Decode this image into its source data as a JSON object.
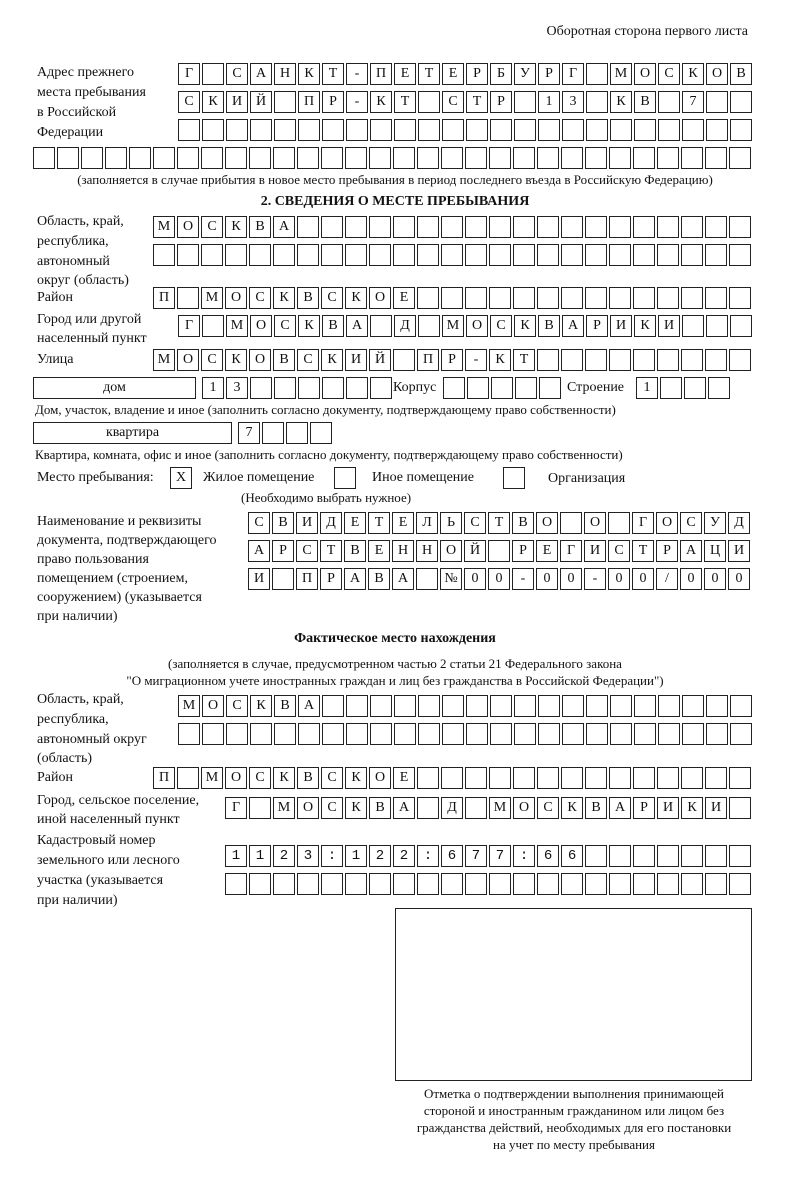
{
  "header": {
    "side_label": "Оборотная сторона первого листа"
  },
  "prev_address": {
    "label": [
      "Адрес прежнего",
      "места пребывания",
      "в Российской",
      "Федерации"
    ],
    "rows": [
      "Г САНКТ-ПЕТЕРБУРГ МОСКОВ",
      "СКИЙ ПР-КТ СТР 13 КВ 7",
      "",
      ""
    ],
    "note": "(заполняется в случае прибытия в новое место пребывания в период последнего въезда в Российскую Федерацию)"
  },
  "section2": {
    "title": "2. СВЕДЕНИЯ О МЕСТЕ ПРЕБЫВАНИЯ",
    "region_label": [
      "Область, край,",
      "республика,",
      "автономный",
      "округ (область)"
    ],
    "region_rows": [
      "МОСКВА",
      ""
    ],
    "district_label": "Район",
    "district": "П МОСКВСКОЕ",
    "city_label": [
      "Город или другой",
      "населенный пункт"
    ],
    "city": "Г МОСКВА Д МОСКВАРИКИ",
    "street_label": "Улица",
    "street": "МОСКОВСКИЙ ПР-КТ",
    "house_type": "дом",
    "house": "13",
    "korpus_label": "Корпус",
    "korpus": "",
    "building_label": "Строение",
    "building": "1",
    "house_note": "Дом, участок, владение и иное (заполнить согласно документу, подтверждающему право собственности)",
    "flat_type": "квартира",
    "flat": "7",
    "flat_note": "Квартира, комната, офис и иное (заполнить согласно документу, подтверждающему право собственности)",
    "stay_label": "Место пребывания:",
    "stay_options": [
      {
        "label": "Жилое помещение",
        "mark": "Х"
      },
      {
        "label": "Иное помещение",
        "mark": ""
      },
      {
        "label": "Организация",
        "mark": ""
      }
    ],
    "stay_hint": "(Необходимо выбрать нужное)",
    "doc_label": [
      "Наименование и реквизиты",
      "документа, подтверждающего",
      "право пользования",
      "помещением (строением,",
      "сооружением) (указывается",
      "при наличии)"
    ],
    "doc_rows": [
      "СВИДЕТЕЛЬСТВО О ГОСУД",
      "АРСТВЕННОЙ РЕГИСТРАЦИ",
      "И ПРАВА №00-00-00/000"
    ]
  },
  "actual": {
    "title": "Фактическое место нахождения",
    "subtitle": [
      "(заполняется в случае, предусмотренном частью 2 статьи 21 Федерального закона",
      "\"О миграционном учете иностранных граждан и лиц без гражданства в Российской Федерации\")"
    ],
    "region_label": [
      "Область, край,",
      "республика,",
      "автономный округ",
      "(область)"
    ],
    "region_rows": [
      "МОСКВА",
      ""
    ],
    "district_label": "Район",
    "district": "П МОСКВСКОЕ",
    "city_label": [
      "Город, сельское поселение,",
      "иной населенный пункт"
    ],
    "city": "Г МОСКВА Д МОСКВАРИКИ",
    "cadastral_label": [
      "Кадастровый номер",
      "земельного или лесного",
      "участка (указывается",
      "при наличии)"
    ],
    "cadastral_rows": [
      "1123:122:677:66",
      ""
    ]
  },
  "stamp": {
    "caption": [
      "Отметка о подтверждении выполнения принимающей",
      "стороной и иностранным гражданином или лицом без",
      "гражданства действий, необходимых для его постановки",
      "на учет по месту пребывания"
    ]
  }
}
